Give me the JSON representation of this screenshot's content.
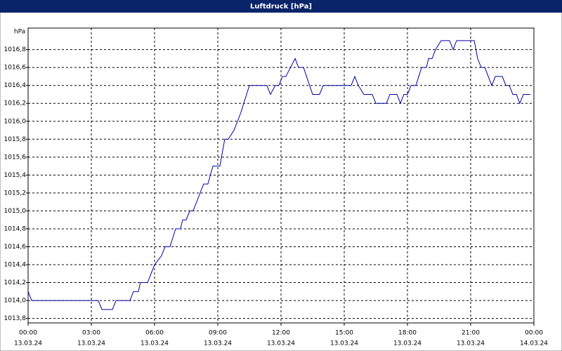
{
  "chart_data": {
    "type": "line",
    "title": "Luftdruck [hPa]",
    "y_label": "hPa",
    "xlim": [
      0,
      24
    ],
    "xticks": [
      {
        "value": 0,
        "label": "00:00",
        "date": "13.03.24"
      },
      {
        "value": 3,
        "label": "03:00",
        "date": "13.03.24"
      },
      {
        "value": 6,
        "label": "06:00",
        "date": "13.03.24"
      },
      {
        "value": 9,
        "label": "09:00",
        "date": "13.03.24"
      },
      {
        "value": 12,
        "label": "12:00",
        "date": "13.03.24"
      },
      {
        "value": 15,
        "label": "15:00",
        "date": "13.03.24"
      },
      {
        "value": 18,
        "label": "18:00",
        "date": "13.03.24"
      },
      {
        "value": 21,
        "label": "21:00",
        "date": "13.03.24"
      },
      {
        "value": 24,
        "label": "00:00",
        "date": "14.03.24"
      }
    ],
    "ylim": [
      1013.75,
      1017.04
    ],
    "yticks": [
      {
        "value": 1013.8,
        "label": "1013,8"
      },
      {
        "value": 1014.0,
        "label": "1014,0"
      },
      {
        "value": 1014.2,
        "label": "1014,2"
      },
      {
        "value": 1014.4,
        "label": "1014,4"
      },
      {
        "value": 1014.6,
        "label": "1014,6"
      },
      {
        "value": 1014.8,
        "label": "1014,8"
      },
      {
        "value": 1015.0,
        "label": "1015,0"
      },
      {
        "value": 1015.2,
        "label": "1015,2"
      },
      {
        "value": 1015.4,
        "label": "1015,4"
      },
      {
        "value": 1015.6,
        "label": "1015,6"
      },
      {
        "value": 1015.8,
        "label": "1015,8"
      },
      {
        "value": 1016.0,
        "label": "1016,0"
      },
      {
        "value": 1016.2,
        "label": "1016,2"
      },
      {
        "value": 1016.4,
        "label": "1016,4"
      },
      {
        "value": 1016.6,
        "label": "1016,6"
      },
      {
        "value": 1016.8,
        "label": "1016,8"
      }
    ],
    "grid": true,
    "series": [
      {
        "color": "#0000a8",
        "x": [
          0,
          0.17,
          3.33,
          3.5,
          4,
          4.17,
          4.83,
          5,
          5.23,
          5.33,
          5.67,
          6,
          6.33,
          6.5,
          6.73,
          7,
          7.23,
          7.33,
          7.5,
          7.67,
          7.83,
          8.33,
          8.53,
          8.77,
          9.1,
          9.33,
          9.5,
          9.77,
          10.1,
          10.5,
          11.33,
          11.5,
          11.73,
          11.9,
          12.07,
          12.23,
          12.67,
          12.83,
          13.07,
          13.5,
          13.83,
          14,
          15.33,
          15.5,
          15.67,
          15.93,
          16.33,
          16.5,
          17,
          17.17,
          17.5,
          17.67,
          17.83,
          18,
          18.17,
          18.4,
          18.67,
          18.9,
          19,
          19.17,
          19.33,
          19.6,
          20,
          20.17,
          20.33,
          21.17,
          21.33,
          21.5,
          21.67,
          22,
          22.17,
          22.5,
          22.67,
          22.83,
          23,
          23.17,
          23.33,
          23.5,
          23.83
        ],
        "values": [
          1014.1,
          1014.0,
          1014.0,
          1013.9,
          1013.9,
          1014.0,
          1014.0,
          1014.1,
          1014.1,
          1014.2,
          1014.2,
          1014.4,
          1014.5,
          1014.6,
          1014.6,
          1014.8,
          1014.8,
          1014.9,
          1014.9,
          1015.0,
          1015.0,
          1015.3,
          1015.3,
          1015.5,
          1015.5,
          1015.8,
          1015.8,
          1015.9,
          1016.1,
          1016.4,
          1016.4,
          1016.3,
          1016.4,
          1016.4,
          1016.5,
          1016.5,
          1016.7,
          1016.6,
          1016.6,
          1016.3,
          1016.3,
          1016.4,
          1016.4,
          1016.5,
          1016.4,
          1016.3,
          1016.3,
          1016.2,
          1016.2,
          1016.3,
          1016.3,
          1016.2,
          1016.3,
          1016.3,
          1016.4,
          1016.4,
          1016.6,
          1016.6,
          1016.7,
          1016.7,
          1016.8,
          1016.9,
          1016.9,
          1016.8,
          1016.9,
          1016.9,
          1016.7,
          1016.6,
          1016.6,
          1016.4,
          1016.5,
          1016.5,
          1016.4,
          1016.4,
          1016.3,
          1016.3,
          1016.2,
          1016.3,
          1016.3
        ]
      }
    ]
  }
}
